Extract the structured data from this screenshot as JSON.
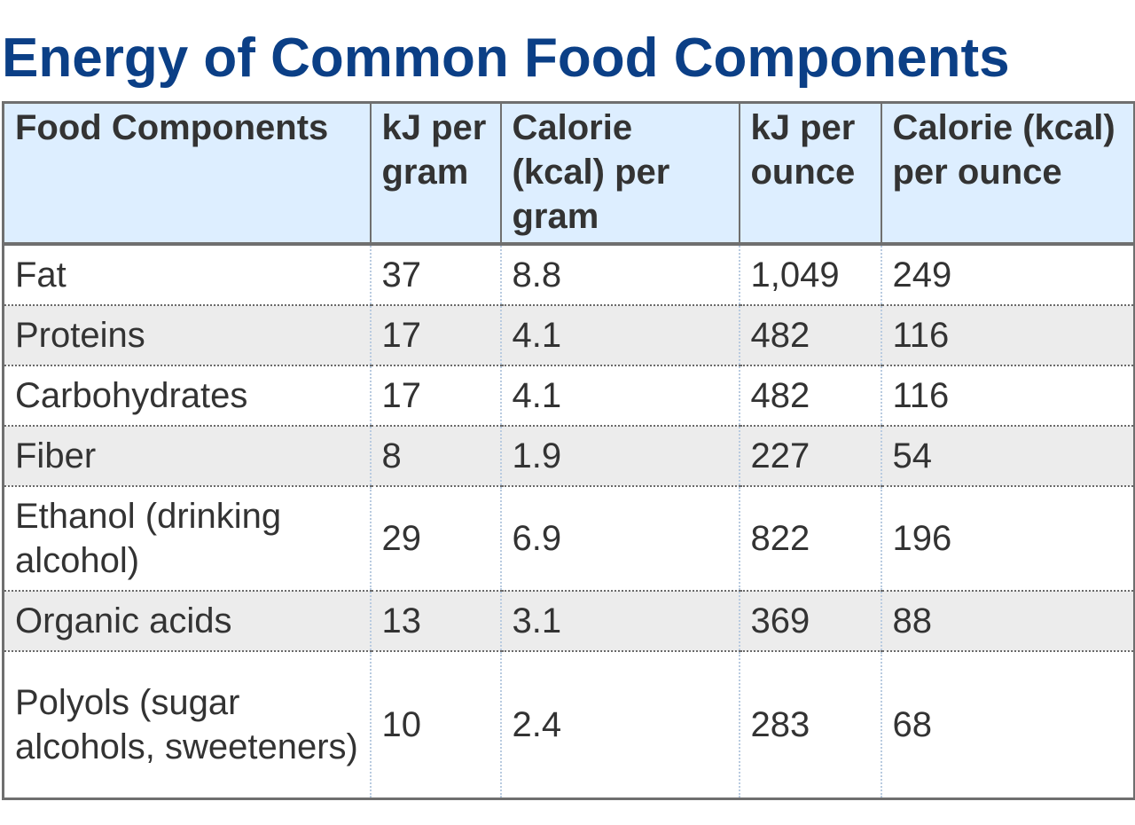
{
  "title": "Energy of Common Food Components",
  "table": {
    "headers": [
      "Food Components",
      "kJ per gram",
      "Calorie (kcal) per gram",
      "kJ per ounce",
      "Calorie (kcal) per ounce"
    ],
    "rows": [
      [
        "Fat",
        "37",
        "8.8",
        "1,049",
        "249"
      ],
      [
        "Proteins",
        "17",
        "4.1",
        "482",
        "116"
      ],
      [
        "Carbohydrates",
        "17",
        "4.1",
        "482",
        "116"
      ],
      [
        "Fiber",
        "8",
        "1.9",
        "227",
        "54"
      ],
      [
        "Ethanol (drinking alcohol)",
        "29",
        "6.9",
        "822",
        "196"
      ],
      [
        "Organic acids",
        "13",
        "3.1",
        "369",
        "88"
      ],
      [
        "Polyols (sugar alcohols, sweeteners)",
        "10",
        "2.4",
        "283",
        "68"
      ]
    ]
  }
}
